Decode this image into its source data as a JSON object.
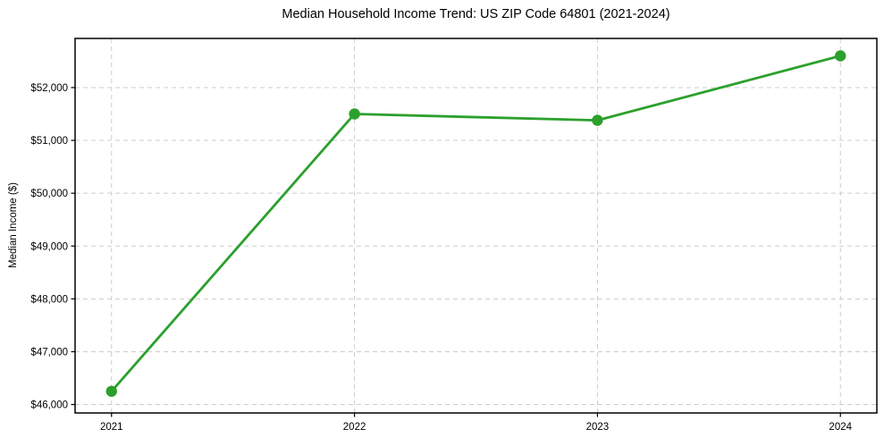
{
  "chart_data": {
    "type": "line",
    "title": "Median Household Income Trend: US ZIP Code 64801 (2021-2024)",
    "xlabel": "",
    "ylabel": "Median Income ($)",
    "x": [
      2021,
      2022,
      2023,
      2024
    ],
    "x_tick_labels": [
      "2021",
      "2022",
      "2023",
      "2024"
    ],
    "series": [
      {
        "name": "Median Household Income",
        "values": [
          46250,
          51500,
          51380,
          52600
        ]
      }
    ],
    "y_ticks": [
      46000,
      47000,
      48000,
      49000,
      50000,
      51000,
      52000
    ],
    "y_tick_labels": [
      "$46,000",
      "$47,000",
      "$48,000",
      "$49,000",
      "$50,000",
      "$51,000",
      "$52,000"
    ],
    "xlim": [
      2020.85,
      2024.15
    ],
    "ylim": [
      45840,
      52930
    ],
    "grid": true,
    "grid_line_style": "dashed",
    "legend": false,
    "marker": "circle",
    "colors": {
      "line": "#2ca02c",
      "marker": "#2ca02c",
      "grid": "#cccccc",
      "spine": "#000000",
      "tick": "#000000",
      "text": "#000000",
      "background": "#ffffff"
    },
    "line_width": 2.8,
    "marker_radius": 6.2
  }
}
